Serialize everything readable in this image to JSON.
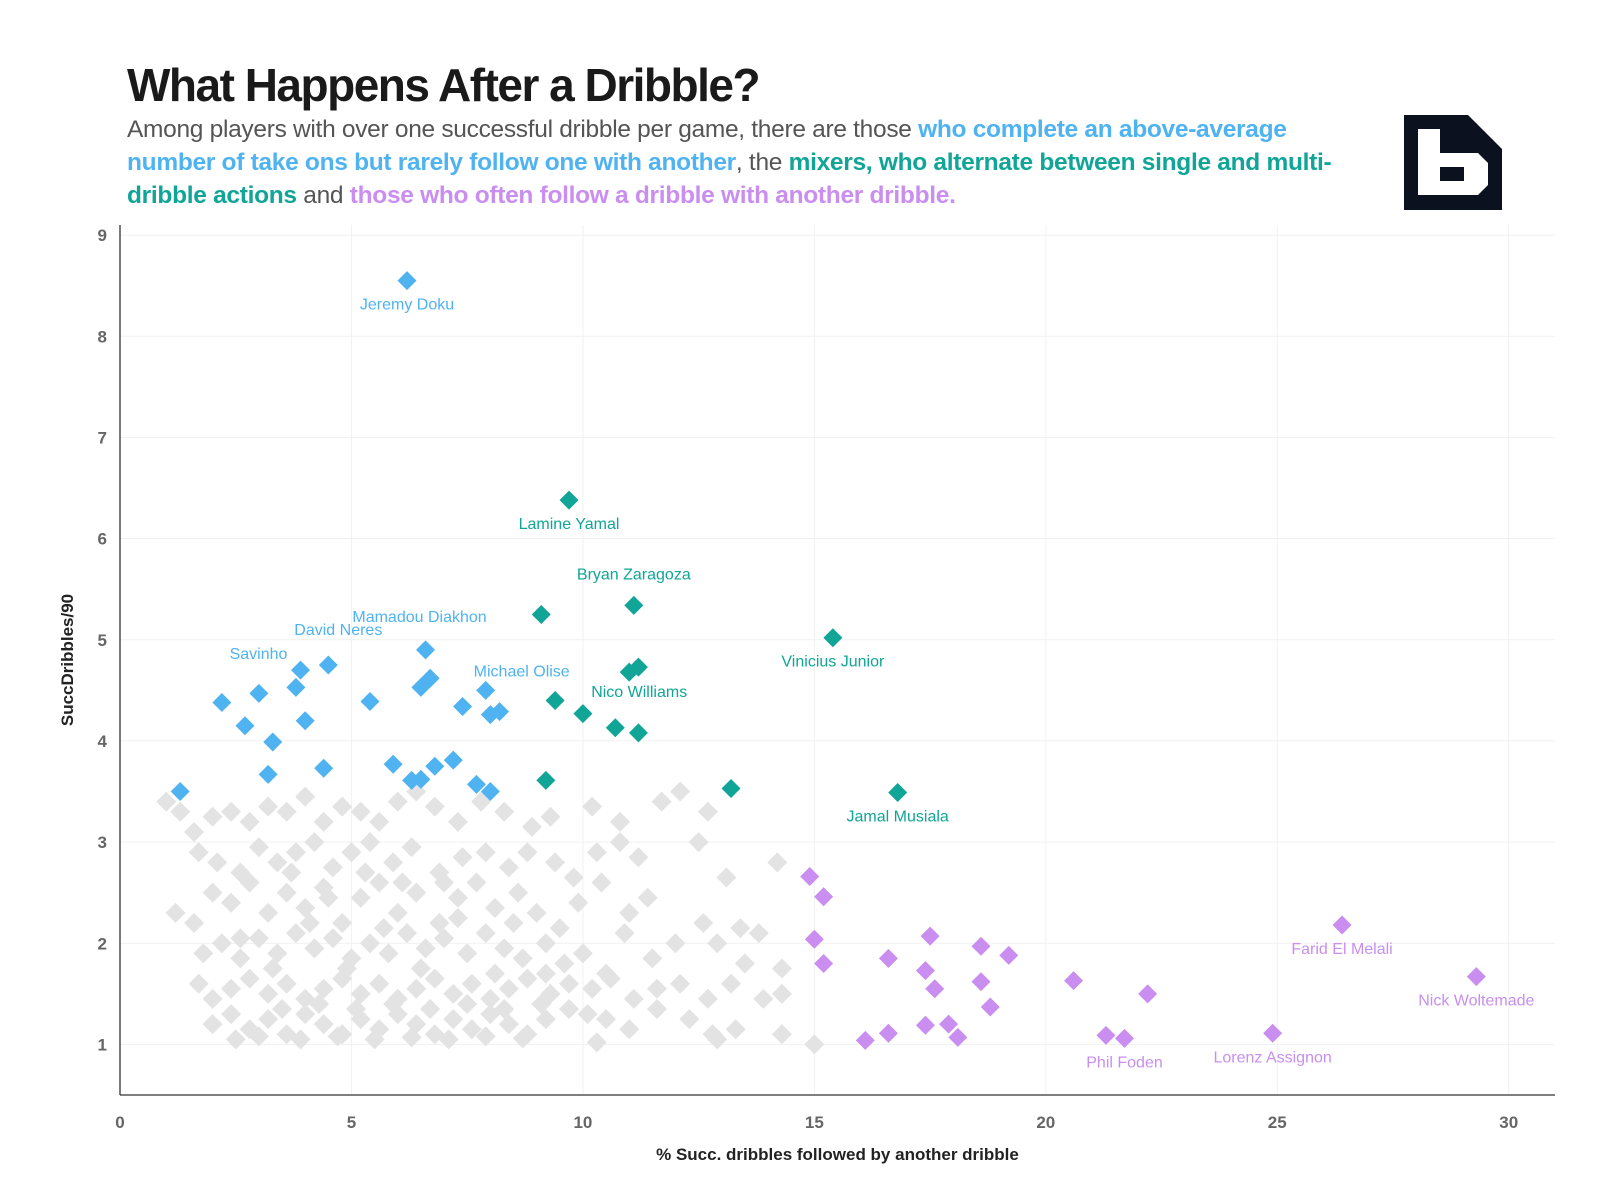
{
  "header": {
    "title": "What Happens After a Dribble?",
    "subtitle_parts": [
      {
        "text": "Among players with over one successful dribble per game, there are those ",
        "color": "#555555",
        "bold": false
      },
      {
        "text": "who complete an above-average number of take ons but rarely follow one with another",
        "color": "#4fb3f1",
        "bold": true
      },
      {
        "text": ", the ",
        "color": "#555555",
        "bold": false
      },
      {
        "text": "mixers, who alternate between single and multi-dribble actions",
        "color": "#10a596",
        "bold": true
      },
      {
        "text": " and ",
        "color": "#555555",
        "bold": false
      },
      {
        "text": "those who often follow a dribble with another dribble.",
        "color": "#c98ef0",
        "bold": true
      }
    ]
  },
  "logo": {
    "icon": "b-logo-icon",
    "background": "#0c1120",
    "foreground": "#ffffff"
  },
  "colors": {
    "blue": "#4fb3f1",
    "teal": "#10a596",
    "purple": "#c98ef0",
    "grey": "#e3e3e3"
  },
  "chart_data": {
    "type": "scatter",
    "marker": "diamond",
    "xlabel": "% Succ. dribbles followed by another dribble",
    "ylabel": "SuccDribbles/90",
    "xlim": [
      0,
      31
    ],
    "ylim": [
      0.5,
      9.1
    ],
    "xticks": [
      0,
      5,
      10,
      15,
      20,
      25,
      30
    ],
    "yticks": [
      1,
      2,
      3,
      4,
      5,
      6,
      7,
      8,
      9
    ],
    "grid": true,
    "series": [
      {
        "group": "blue",
        "points": [
          [
            6.2,
            8.55,
            "Jeremy Doku"
          ],
          [
            3.9,
            4.7,
            "Savinho"
          ],
          [
            4.5,
            4.75,
            "David Neres"
          ],
          [
            6.6,
            4.9,
            "Mamadou Diakhon"
          ],
          [
            7.9,
            4.5,
            "Michael Olise"
          ],
          [
            1.3,
            3.5,
            ""
          ],
          [
            2.2,
            4.38,
            ""
          ],
          [
            2.7,
            4.15,
            ""
          ],
          [
            3.0,
            4.47,
            ""
          ],
          [
            3.2,
            3.67,
            ""
          ],
          [
            3.3,
            3.99,
            ""
          ],
          [
            3.8,
            4.53,
            ""
          ],
          [
            4.0,
            4.2,
            ""
          ],
          [
            4.4,
            3.73,
            ""
          ],
          [
            5.4,
            4.39,
            ""
          ],
          [
            5.9,
            3.77,
            ""
          ],
          [
            6.3,
            3.61,
            ""
          ],
          [
            6.5,
            3.62,
            ""
          ],
          [
            6.5,
            4.53,
            ""
          ],
          [
            6.7,
            4.62,
            ""
          ],
          [
            6.8,
            3.75,
            ""
          ],
          [
            7.2,
            3.81,
            ""
          ],
          [
            7.4,
            4.34,
            ""
          ],
          [
            7.7,
            3.57,
            ""
          ],
          [
            8.0,
            3.5,
            ""
          ],
          [
            8.0,
            4.26,
            ""
          ],
          [
            8.2,
            4.29,
            ""
          ]
        ]
      },
      {
        "group": "teal",
        "points": [
          [
            9.7,
            6.38,
            "Lamine Yamal"
          ],
          [
            11.1,
            5.34,
            "Bryan Zaragoza"
          ],
          [
            15.4,
            5.02,
            "Vinicius Junior"
          ],
          [
            11.0,
            4.68,
            "Nico Williams"
          ],
          [
            16.8,
            3.49,
            "Jamal Musiala"
          ],
          [
            9.1,
            5.25,
            ""
          ],
          [
            9.4,
            4.4,
            ""
          ],
          [
            10.0,
            4.27,
            ""
          ],
          [
            10.7,
            4.13,
            ""
          ],
          [
            11.2,
            4.73,
            ""
          ],
          [
            11.2,
            4.08,
            ""
          ],
          [
            9.2,
            3.61,
            ""
          ],
          [
            13.2,
            3.53,
            ""
          ]
        ]
      },
      {
        "group": "purple",
        "points": [
          [
            26.4,
            2.18,
            "Farid El Melali"
          ],
          [
            29.3,
            1.67,
            "Nick Woltemade"
          ],
          [
            21.7,
            1.06,
            "Phil Foden"
          ],
          [
            24.9,
            1.11,
            "Lorenz Assignon"
          ],
          [
            14.9,
            2.66,
            ""
          ],
          [
            15.2,
            2.46,
            ""
          ],
          [
            15.0,
            2.04,
            ""
          ],
          [
            15.2,
            1.8,
            ""
          ],
          [
            16.1,
            1.04,
            ""
          ],
          [
            16.6,
            1.85,
            ""
          ],
          [
            16.6,
            1.11,
            ""
          ],
          [
            17.5,
            2.07,
            ""
          ],
          [
            17.4,
            1.73,
            ""
          ],
          [
            17.6,
            1.55,
            ""
          ],
          [
            17.4,
            1.19,
            ""
          ],
          [
            17.9,
            1.2,
            ""
          ],
          [
            18.1,
            1.07,
            ""
          ],
          [
            18.6,
            1.97,
            ""
          ],
          [
            18.6,
            1.62,
            ""
          ],
          [
            18.8,
            1.37,
            ""
          ],
          [
            19.2,
            1.88,
            ""
          ],
          [
            20.6,
            1.63,
            ""
          ],
          [
            21.3,
            1.09,
            ""
          ],
          [
            22.2,
            1.5,
            ""
          ]
        ]
      },
      {
        "group": "grey",
        "points": [
          [
            1.0,
            3.4
          ],
          [
            1.3,
            3.3
          ],
          [
            1.6,
            3.1
          ],
          [
            2.0,
            3.25
          ],
          [
            2.4,
            3.3
          ],
          [
            2.8,
            3.2
          ],
          [
            3.2,
            3.35
          ],
          [
            3.6,
            3.3
          ],
          [
            4.0,
            3.45
          ],
          [
            4.4,
            3.2
          ],
          [
            4.8,
            3.35
          ],
          [
            5.2,
            3.3
          ],
          [
            5.6,
            3.2
          ],
          [
            6.0,
            3.4
          ],
          [
            6.4,
            3.5
          ],
          [
            6.8,
            3.35
          ],
          [
            7.3,
            3.2
          ],
          [
            7.8,
            3.4
          ],
          [
            8.3,
            3.3
          ],
          [
            8.9,
            3.15
          ],
          [
            9.3,
            3.25
          ],
          [
            10.2,
            3.35
          ],
          [
            10.8,
            3.2
          ],
          [
            11.7,
            3.4
          ],
          [
            12.1,
            3.5
          ],
          [
            12.7,
            3.3
          ],
          [
            1.7,
            2.9
          ],
          [
            2.1,
            2.8
          ],
          [
            2.6,
            2.7
          ],
          [
            3.0,
            2.95
          ],
          [
            3.4,
            2.8
          ],
          [
            3.8,
            2.9
          ],
          [
            4.2,
            3.0
          ],
          [
            4.6,
            2.75
          ],
          [
            5.0,
            2.9
          ],
          [
            5.4,
            3.0
          ],
          [
            5.9,
            2.8
          ],
          [
            6.3,
            2.95
          ],
          [
            6.9,
            2.7
          ],
          [
            7.4,
            2.85
          ],
          [
            7.9,
            2.9
          ],
          [
            8.4,
            2.75
          ],
          [
            8.8,
            2.9
          ],
          [
            9.4,
            2.8
          ],
          [
            9.8,
            2.65
          ],
          [
            10.3,
            2.9
          ],
          [
            10.8,
            3.0
          ],
          [
            11.2,
            2.85
          ],
          [
            12.5,
            3.0
          ],
          [
            13.1,
            2.65
          ],
          [
            14.2,
            2.8
          ],
          [
            1.2,
            2.3
          ],
          [
            1.6,
            2.2
          ],
          [
            2.0,
            2.5
          ],
          [
            2.4,
            2.4
          ],
          [
            2.8,
            2.6
          ],
          [
            3.2,
            2.3
          ],
          [
            3.6,
            2.5
          ],
          [
            4.0,
            2.35
          ],
          [
            4.4,
            2.55
          ],
          [
            4.8,
            2.2
          ],
          [
            5.2,
            2.45
          ],
          [
            5.6,
            2.6
          ],
          [
            6.0,
            2.3
          ],
          [
            6.4,
            2.5
          ],
          [
            6.9,
            2.2
          ],
          [
            7.3,
            2.45
          ],
          [
            7.7,
            2.6
          ],
          [
            8.1,
            2.35
          ],
          [
            8.6,
            2.5
          ],
          [
            9.0,
            2.3
          ],
          [
            9.5,
            2.15
          ],
          [
            9.9,
            2.4
          ],
          [
            10.4,
            2.6
          ],
          [
            11.0,
            2.3
          ],
          [
            11.4,
            2.45
          ],
          [
            12.6,
            2.2
          ],
          [
            13.4,
            2.15
          ],
          [
            13.8,
            2.1
          ],
          [
            1.8,
            1.9
          ],
          [
            2.2,
            2.0
          ],
          [
            2.6,
            1.85
          ],
          [
            3.0,
            2.05
          ],
          [
            3.4,
            1.9
          ],
          [
            3.8,
            2.1
          ],
          [
            4.2,
            1.95
          ],
          [
            4.6,
            2.05
          ],
          [
            5.0,
            1.85
          ],
          [
            5.4,
            2.0
          ],
          [
            5.8,
            1.9
          ],
          [
            6.2,
            2.1
          ],
          [
            6.6,
            1.95
          ],
          [
            7.0,
            2.05
          ],
          [
            7.5,
            1.9
          ],
          [
            7.9,
            2.1
          ],
          [
            8.3,
            1.95
          ],
          [
            8.7,
            1.85
          ],
          [
            9.2,
            2.0
          ],
          [
            9.6,
            1.8
          ],
          [
            10.0,
            1.9
          ],
          [
            10.5,
            1.7
          ],
          [
            10.9,
            2.1
          ],
          [
            11.5,
            1.85
          ],
          [
            12.0,
            2.0
          ],
          [
            12.9,
            2.0
          ],
          [
            13.5,
            1.8
          ],
          [
            14.3,
            1.75
          ],
          [
            1.7,
            1.6
          ],
          [
            2.0,
            1.45
          ],
          [
            2.4,
            1.55
          ],
          [
            2.8,
            1.65
          ],
          [
            3.2,
            1.5
          ],
          [
            3.6,
            1.6
          ],
          [
            4.0,
            1.45
          ],
          [
            4.4,
            1.55
          ],
          [
            4.8,
            1.65
          ],
          [
            5.2,
            1.5
          ],
          [
            5.6,
            1.6
          ],
          [
            6.0,
            1.45
          ],
          [
            6.4,
            1.55
          ],
          [
            6.8,
            1.65
          ],
          [
            7.2,
            1.5
          ],
          [
            7.6,
            1.6
          ],
          [
            8.0,
            1.45
          ],
          [
            8.4,
            1.55
          ],
          [
            8.8,
            1.65
          ],
          [
            9.3,
            1.5
          ],
          [
            9.7,
            1.6
          ],
          [
            10.2,
            1.55
          ],
          [
            10.6,
            1.65
          ],
          [
            11.1,
            1.45
          ],
          [
            11.6,
            1.55
          ],
          [
            12.1,
            1.6
          ],
          [
            12.7,
            1.45
          ],
          [
            13.2,
            1.6
          ],
          [
            13.9,
            1.45
          ],
          [
            14.3,
            1.5
          ],
          [
            2.0,
            1.2
          ],
          [
            2.4,
            1.3
          ],
          [
            2.8,
            1.15
          ],
          [
            3.2,
            1.25
          ],
          [
            3.6,
            1.1
          ],
          [
            4.0,
            1.3
          ],
          [
            4.4,
            1.2
          ],
          [
            4.8,
            1.1
          ],
          [
            5.2,
            1.25
          ],
          [
            5.6,
            1.15
          ],
          [
            6.0,
            1.3
          ],
          [
            6.4,
            1.2
          ],
          [
            6.8,
            1.1
          ],
          [
            7.2,
            1.25
          ],
          [
            7.6,
            1.15
          ],
          [
            8.0,
            1.3
          ],
          [
            8.4,
            1.2
          ],
          [
            8.8,
            1.1
          ],
          [
            9.2,
            1.25
          ],
          [
            9.7,
            1.35
          ],
          [
            10.1,
            1.3
          ],
          [
            10.5,
            1.25
          ],
          [
            11.0,
            1.15
          ],
          [
            11.6,
            1.35
          ],
          [
            12.3,
            1.25
          ],
          [
            12.8,
            1.1
          ],
          [
            13.3,
            1.15
          ],
          [
            14.3,
            1.1
          ],
          [
            15.0,
            1.0
          ],
          [
            2.5,
            1.05
          ],
          [
            3.0,
            1.08
          ],
          [
            3.9,
            1.05
          ],
          [
            4.7,
            1.08
          ],
          [
            5.5,
            1.05
          ],
          [
            6.3,
            1.07
          ],
          [
            7.1,
            1.05
          ],
          [
            7.9,
            1.08
          ],
          [
            8.7,
            1.06
          ],
          [
            10.3,
            1.02
          ],
          [
            12.9,
            1.05
          ],
          [
            2.6,
            2.05
          ],
          [
            3.3,
            1.75
          ],
          [
            4.1,
            2.2
          ],
          [
            4.9,
            1.75
          ],
          [
            5.7,
            2.15
          ],
          [
            6.5,
            1.75
          ],
          [
            7.3,
            2.25
          ],
          [
            8.1,
            1.7
          ],
          [
            9.2,
            1.7
          ],
          [
            3.5,
            1.35
          ],
          [
            4.3,
            1.4
          ],
          [
            5.1,
            1.35
          ],
          [
            5.9,
            1.4
          ],
          [
            6.7,
            1.35
          ],
          [
            7.5,
            1.4
          ],
          [
            8.3,
            1.35
          ],
          [
            9.1,
            1.4
          ],
          [
            5.3,
            2.7
          ],
          [
            6.1,
            2.6
          ],
          [
            7.0,
            2.6
          ],
          [
            8.5,
            2.2
          ],
          [
            3.7,
            2.7
          ],
          [
            4.5,
            2.45
          ]
        ]
      }
    ]
  }
}
